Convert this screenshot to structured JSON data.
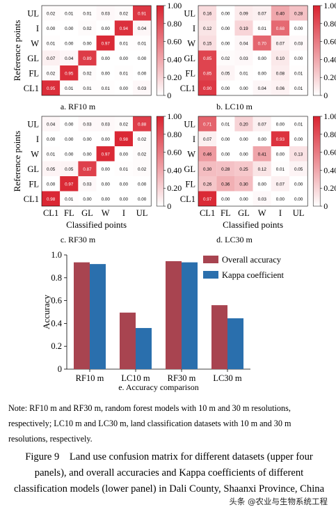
{
  "chart_data": [
    {
      "type": "heatmap",
      "caption": "a. RF10 m",
      "rows": [
        "UL",
        "I",
        "W",
        "GL",
        "FL",
        "CL1"
      ],
      "cols": [
        "CL1",
        "FL",
        "GL",
        "W",
        "I",
        "UL"
      ],
      "ylabel": "Reference points",
      "xlabel": "",
      "values": [
        [
          0.02,
          0.01,
          0.01,
          0.03,
          0.02,
          0.91
        ],
        [
          0.0,
          0.0,
          0.02,
          0.0,
          0.94,
          0.04
        ],
        [
          0.01,
          0.0,
          0.0,
          0.97,
          0.01,
          0.01
        ],
        [
          0.07,
          0.04,
          0.89,
          0.0,
          0.0,
          0.0
        ],
        [
          0.02,
          0.95,
          0.02,
          0.0,
          0.01,
          0.0
        ],
        [
          0.95,
          0.01,
          0.01,
          0.01,
          0.0,
          0.03
        ]
      ],
      "colorbar_ticks": [
        "1.00",
        "0.80",
        "0.60",
        "0.40",
        "0.20",
        "0"
      ]
    },
    {
      "type": "heatmap",
      "caption": "b. LC10 m",
      "rows": [
        "UL",
        "I",
        "W",
        "GL",
        "FL",
        "CL1"
      ],
      "cols": [
        "CL1",
        "FL",
        "GL",
        "W",
        "I",
        "UL"
      ],
      "ylabel": "",
      "xlabel": "",
      "values": [
        [
          0.16,
          0.0,
          0.09,
          0.07,
          0.4,
          0.28
        ],
        [
          0.12,
          0.0,
          0.19,
          0.01,
          0.68,
          0.0
        ],
        [
          0.15,
          0.0,
          0.04,
          0.7,
          0.07,
          0.03
        ],
        [
          0.85,
          0.02,
          0.03,
          0.0,
          0.1,
          0.0
        ],
        [
          0.85,
          0.05,
          0.01,
          0.0,
          0.08,
          0.01
        ],
        [
          0.9,
          0.0,
          0.0,
          0.04,
          0.06,
          0.01
        ]
      ],
      "colorbar_ticks": [
        "1.00",
        "0.80",
        "0.60",
        "0.40",
        "0.20",
        "0"
      ]
    },
    {
      "type": "heatmap",
      "caption": "c. RF30 m",
      "rows": [
        "UL",
        "I",
        "W",
        "GL",
        "FL",
        "CL1"
      ],
      "cols": [
        "CL1",
        "FL",
        "GL",
        "W",
        "I",
        "UL"
      ],
      "ylabel": "Reference points",
      "xlabel": "Classified points",
      "values": [
        [
          0.04,
          0.0,
          0.03,
          0.03,
          0.02,
          0.88
        ],
        [
          0.0,
          0.0,
          0.0,
          0.0,
          0.98,
          0.02
        ],
        [
          0.01,
          0.0,
          0.0,
          0.97,
          0.0,
          0.02
        ],
        [
          0.05,
          0.05,
          0.87,
          0.0,
          0.01,
          0.02
        ],
        [
          0.0,
          0.97,
          0.03,
          0.0,
          0.0,
          0.0
        ],
        [
          0.98,
          0.01,
          0.0,
          0.0,
          0.0,
          0.0
        ]
      ],
      "colorbar_ticks": [
        "1.00",
        "0.80",
        "0.60",
        "0.40",
        "0.20",
        "0"
      ]
    },
    {
      "type": "heatmap",
      "caption": "d. LC30 m",
      "rows": [
        "UL",
        "I",
        "W",
        "GL",
        "FL",
        "CL1"
      ],
      "cols": [
        "CL1",
        "FL",
        "GL",
        "W",
        "I",
        "UL"
      ],
      "ylabel": "",
      "xlabel": "Classified points",
      "values": [
        [
          0.71,
          0.01,
          0.2,
          0.07,
          0.0,
          0.01
        ],
        [
          0.07,
          0.0,
          0.0,
          0.0,
          0.93,
          0.0
        ],
        [
          0.46,
          0.0,
          0.0,
          0.41,
          0.0,
          0.13
        ],
        [
          0.3,
          0.28,
          0.25,
          0.12,
          0.01,
          0.05
        ],
        [
          0.26,
          0.36,
          0.3,
          0.0,
          0.07,
          0.0
        ],
        [
          0.97,
          0.0,
          0.0,
          0.03,
          0.0,
          0.0
        ]
      ],
      "colorbar_ticks": [
        "1.00",
        "0.80",
        "0.60",
        "0.40",
        "0.20",
        "0"
      ]
    },
    {
      "type": "bar",
      "caption": "e. Accuracy comparison",
      "categories": [
        "RF10 m",
        "LC10 m",
        "RF30 m",
        "LC30 m"
      ],
      "series": [
        {
          "name": "Overall accuracy",
          "values": [
            0.935,
            0.495,
            0.945,
            0.56
          ],
          "color": "#a84450"
        },
        {
          "name": "Kappa coefficient",
          "values": [
            0.92,
            0.36,
            0.935,
            0.445
          ],
          "color": "#2a6fad"
        }
      ],
      "ylabel": "Accuracy",
      "xlabel": "",
      "ylim": [
        0,
        1.0
      ],
      "yticks": [
        "0",
        "0.2",
        "0.4",
        "0.6",
        "0.8",
        "1.0"
      ],
      "legend_position": "top-right"
    }
  ],
  "note": "Note: RF10 m and RF30 m, random forest models with 10 m and 30 m resolutions, respectively; LC10 m and LC30 m, land classification datasets with 10 m and 30 m resolutions, respectively.",
  "caption": "Figure 9　Land use confusion matrix for different datasets (upper four panels), and overall accuracies and Kappa coefficients of different classification models (lower panel) in Dali County, Shaanxi Province, China",
  "watermark": "头条 @农业与生物系统工程"
}
